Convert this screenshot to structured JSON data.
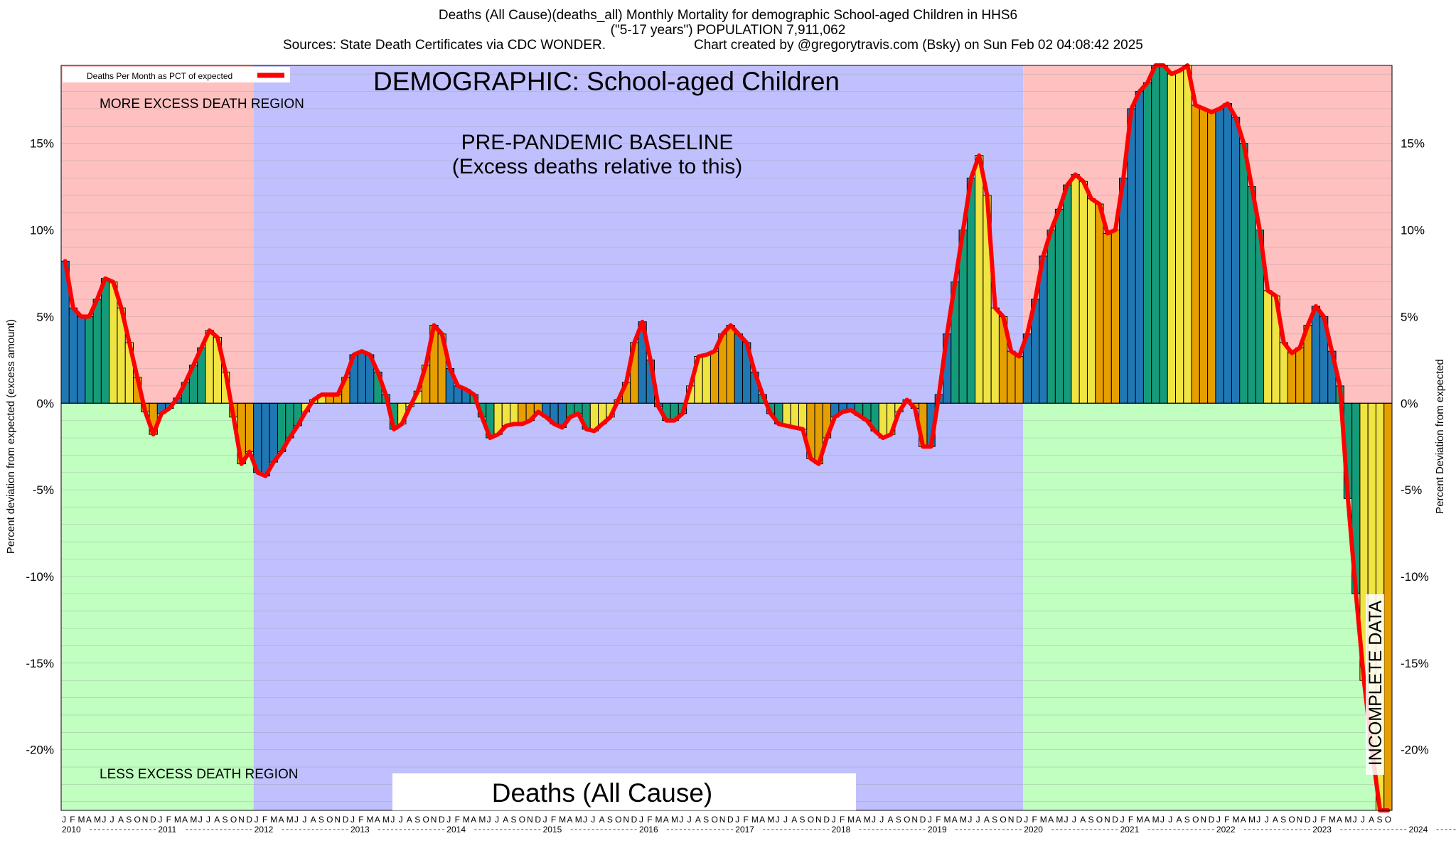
{
  "header": {
    "title": "Deaths (All Cause)(deaths_all) Monthly Mortality for demographic School-aged Children in HHS6",
    "subtitle": "(\"5-17 years\") POPULATION 7,911,062",
    "sources": "Sources: State Death Certificates via CDC WONDER.",
    "credit": "Chart created by @gregorytravis.com (Bsky) on Sun Feb 02 04:08:42 2025"
  },
  "annotations": {
    "demographic": "DEMOGRAPHIC: School-aged Children",
    "baseline_line1": "PRE-PANDEMIC BASELINE",
    "baseline_line2": "(Excess deaths relative to this)",
    "more_region": "MORE EXCESS DEATH REGION",
    "less_region": "LESS EXCESS DEATH REGION",
    "bottom_label": "Deaths (All Cause)",
    "incomplete": "INCOMPLETE DATA"
  },
  "colors": {
    "excess_region": "#ffc0c0",
    "deficit_region": "#c0ffc0",
    "baseline_region": "#c0c0ff",
    "line": "#ff0000",
    "bar_palette": [
      "#1f78b4",
      "#159b7a",
      "#f0e442",
      "#e69f00"
    ]
  },
  "chart_data": {
    "type": "bar",
    "ylabel": "Percent deviation from expected (excess amount)",
    "ylabel_right": "Percent Deviation from expected",
    "legend": "Deaths Per Month as PCT of expected",
    "legend_position": "top-left",
    "ylim": [
      -23.5,
      19.5
    ],
    "yticks": [
      "15%",
      "10%",
      "5%",
      "0%",
      "-5%",
      "-10%",
      "-15%",
      "-20%"
    ],
    "ytick_values": [
      15,
      10,
      5,
      0,
      -5,
      -10,
      -15,
      -20
    ],
    "month_letters": [
      "J",
      "F",
      "M",
      "A",
      "M",
      "J",
      "J",
      "A",
      "S",
      "O",
      "N",
      "D"
    ],
    "years": [
      "2010",
      "2011",
      "2012",
      "2013",
      "2014",
      "2015",
      "2016",
      "2017",
      "2018",
      "2019",
      "2020",
      "2021",
      "2022",
      "2023",
      "2024"
    ],
    "start": "2010-01",
    "baseline_period": [
      "2012-01",
      "2019-12"
    ],
    "incomplete_from": "2024-09",
    "values": [
      8.2,
      5.5,
      5.0,
      5.0,
      6.0,
      7.2,
      7.0,
      5.5,
      3.5,
      1.5,
      -0.5,
      -1.8,
      -0.6,
      -0.3,
      0.3,
      1.2,
      2.2,
      3.2,
      4.2,
      3.8,
      1.8,
      -0.8,
      -3.5,
      -2.8,
      -4.0,
      -4.2,
      -3.4,
      -2.8,
      -2.0,
      -1.3,
      -0.5,
      0.2,
      0.5,
      0.5,
      0.5,
      1.5,
      2.8,
      3.0,
      2.8,
      1.8,
      0.5,
      -1.5,
      -1.2,
      -0.2,
      0.7,
      2.2,
      4.5,
      4.0,
      2.0,
      1.0,
      0.8,
      0.5,
      -0.8,
      -2.0,
      -1.8,
      -1.3,
      -1.2,
      -1.2,
      -1.0,
      -0.5,
      -0.8,
      -1.2,
      -1.4,
      -0.8,
      -0.6,
      -1.5,
      -1.6,
      -1.2,
      -0.8,
      0.2,
      1.2,
      3.5,
      4.7,
      2.5,
      -0.2,
      -1.0,
      -1.0,
      -0.6,
      1.0,
      2.7,
      2.8,
      3.0,
      4.0,
      4.5,
      4.0,
      3.5,
      1.8,
      0.5,
      -0.6,
      -1.2,
      -1.3,
      -1.4,
      -1.5,
      -3.2,
      -3.5,
      -2.0,
      -0.8,
      -0.5,
      -0.4,
      -0.7,
      -1.0,
      -1.6,
      -2.0,
      -1.8,
      -0.5,
      0.2,
      -0.3,
      -2.5,
      -2.5,
      0.5,
      4.0,
      7.0,
      10.0,
      13.0,
      14.3,
      12.0,
      5.5,
      5.0,
      3.0,
      2.7,
      4.0,
      6.0,
      8.5,
      10.0,
      11.2,
      12.6,
      13.2,
      12.8,
      11.8,
      11.5,
      9.8,
      10.0,
      13.0,
      17.0,
      18.0,
      18.5,
      19.5,
      19.5,
      19.0,
      19.2,
      19.5,
      17.2,
      17.0,
      16.8,
      17.0,
      17.3,
      16.5,
      15.0,
      12.5,
      10.0,
      6.5,
      6.2,
      3.5,
      2.9,
      3.2,
      4.5,
      5.6,
      5.0,
      3.0,
      1.0,
      -5.5,
      -11.0,
      -16.0,
      -20.0,
      -23.5,
      -23.5
    ]
  }
}
